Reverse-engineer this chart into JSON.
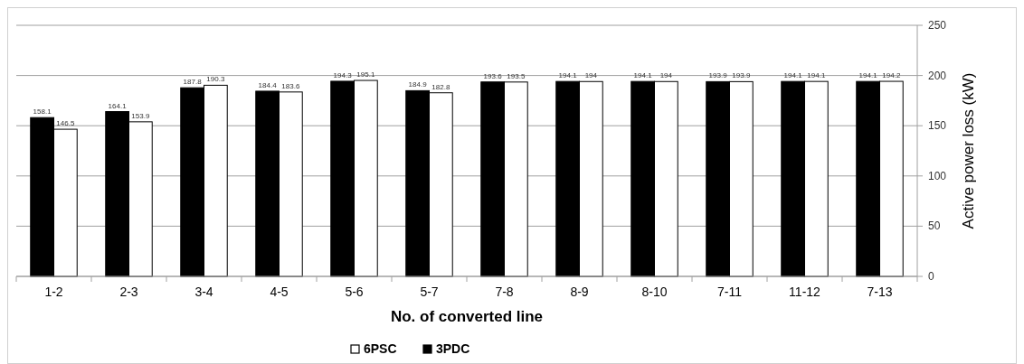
{
  "chart_data": {
    "type": "bar",
    "xlabel": "No. of converted line",
    "ylabel": "Active power loss (kW)",
    "categories": [
      "1-2",
      "2-3",
      "3-4",
      "4-5",
      "5-6",
      "5-7",
      "7-8",
      "8-9",
      "8-10",
      "7-11",
      "11-12",
      "7-13"
    ],
    "series": [
      {
        "name": "3PDC",
        "color": "#000000",
        "values": [
          158.1,
          164.1,
          187.8,
          184.4,
          194.3,
          184.9,
          193.6,
          194.1,
          194.1,
          193.9,
          194.1,
          194.1
        ]
      },
      {
        "name": "6PSC",
        "color": "#ffffff",
        "values": [
          146.5,
          153.9,
          190.3,
          183.6,
          195.1,
          182.8,
          193.5,
          194,
          194,
          193.9,
          194.1,
          194.2
        ]
      }
    ],
    "ylim": [
      0,
      250
    ],
    "yticks": [
      0,
      50,
      100,
      150,
      200,
      250
    ],
    "grid": "y",
    "legend": "bottom",
    "data_labels": true
  }
}
